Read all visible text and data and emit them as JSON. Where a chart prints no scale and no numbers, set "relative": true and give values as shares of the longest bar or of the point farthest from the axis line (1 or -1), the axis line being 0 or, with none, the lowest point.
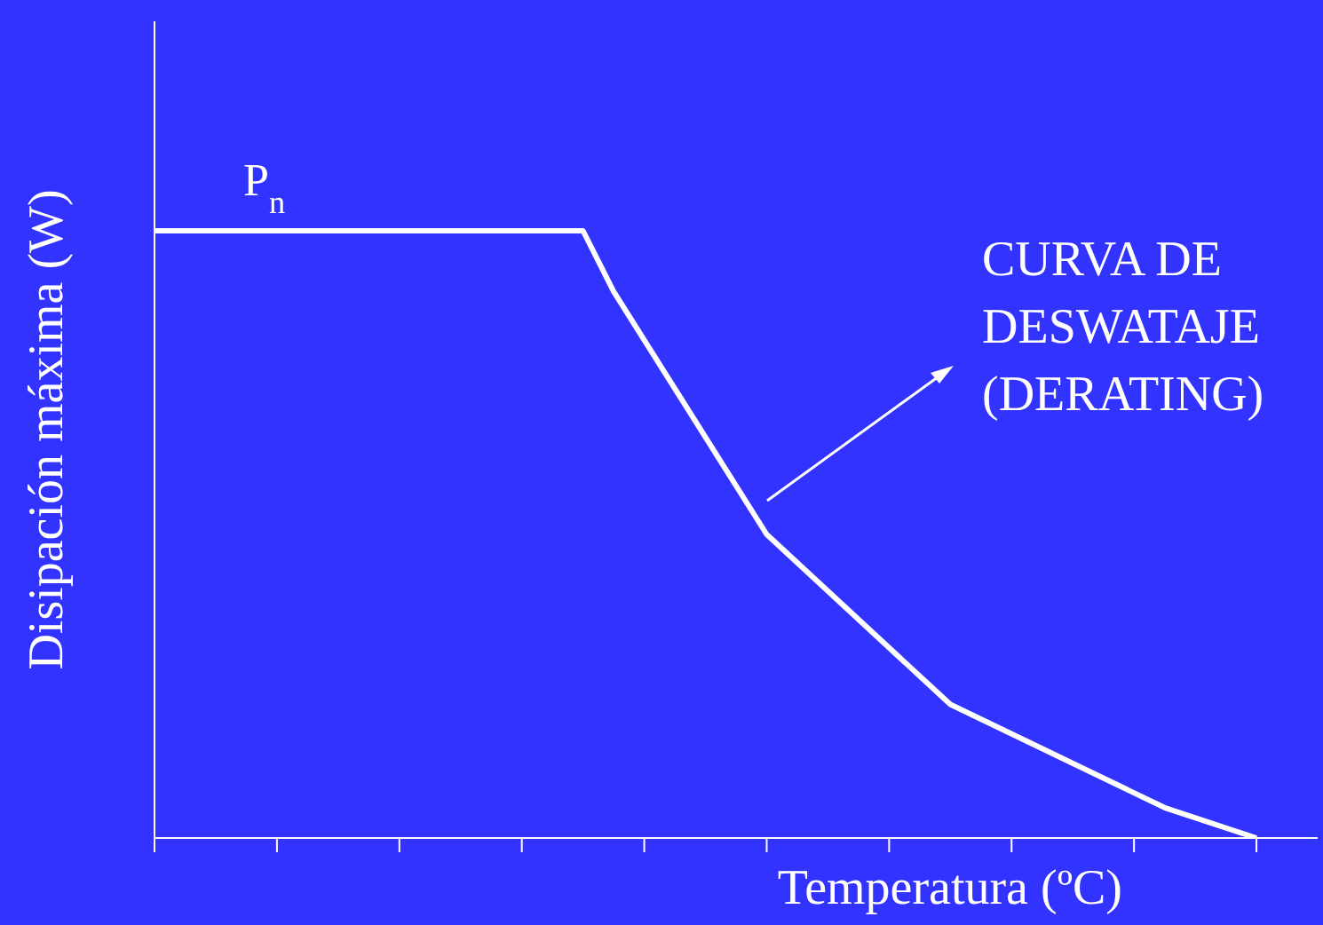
{
  "chart_data": {
    "type": "line",
    "relative": true,
    "xlabel": "Temperatura (ºC)",
    "ylabel": "Disipación máxima (W)",
    "categories": [
      null,
      null,
      null,
      null,
      null,
      null,
      null,
      null,
      null,
      null,
      null,
      null,
      null,
      null,
      null,
      null,
      null,
      null,
      null,
      null,
      null,
      null,
      null,
      null,
      null,
      null,
      null,
      null,
      null,
      null,
      null,
      null,
      null,
      null,
      null,
      null,
      null
    ],
    "series": [
      {
        "color": "#ffffff",
        "values": [
          1,
          null,
          null,
          null,
          null,
          null,
          null,
          null,
          null,
          null,
          null,
          null,
          null,
          null,
          1,
          0.9,
          null,
          null,
          null,
          null,
          0.5,
          null,
          null,
          null,
          null,
          null,
          0.22,
          null,
          null,
          null,
          null,
          null,
          null,
          0.05,
          null,
          null,
          0
        ]
      }
    ],
    "annotations": [
      "P$_{n}$",
      "CURVA DE DESWATAJE (DERATING)"
    ],
    "marker": "none",
    "line_style": "solid"
  }
}
